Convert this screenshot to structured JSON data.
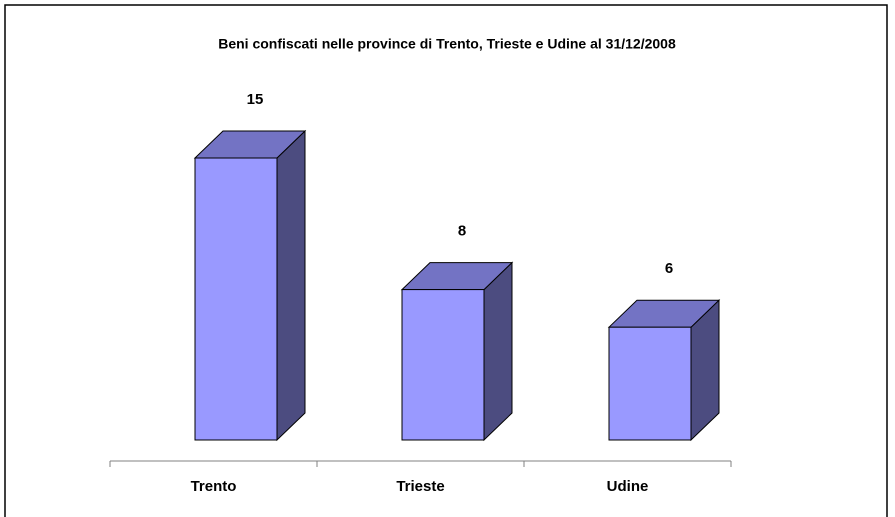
{
  "chart_data": {
    "type": "bar",
    "title": "Beni confiscati nelle province di Trento, Trieste e Udine al 31/12/2008",
    "categories": [
      "Trento",
      "Trieste",
      "Udine"
    ],
    "values": [
      15,
      8,
      6
    ],
    "color": "#9999ff"
  }
}
